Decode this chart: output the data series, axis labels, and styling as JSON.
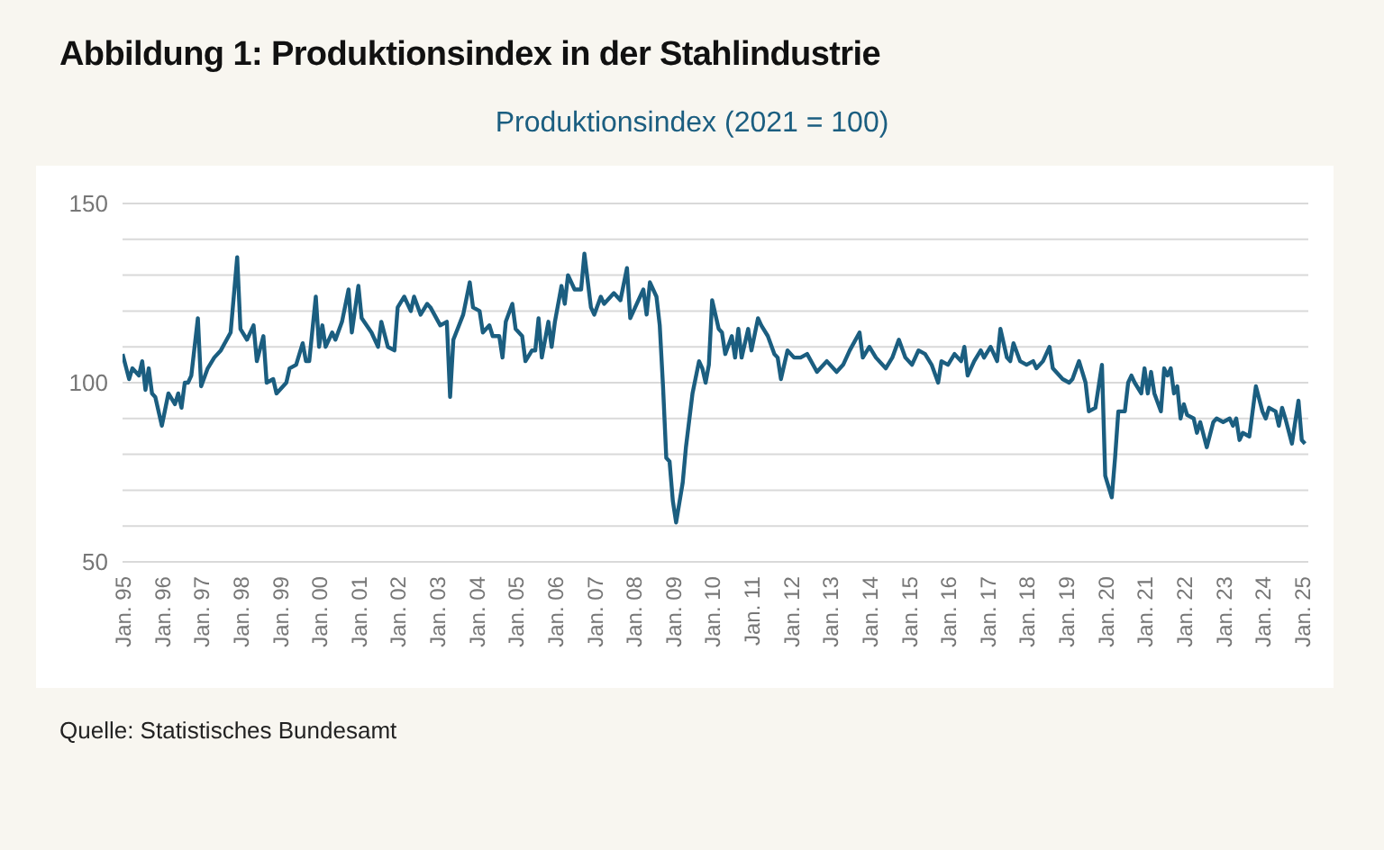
{
  "chart_data": {
    "type": "line",
    "title": "Abbildung 1: Produktionsindex in der Stahlindustrie",
    "subtitle": "Produktionsindex (2021 = 100)",
    "annotations": [
      "Quelle: Statistisches Bundesamt"
    ],
    "x": [
      "1995-01",
      "1995-03",
      "1995-04",
      "1995-06",
      "1995-07",
      "1995-08",
      "1995-09",
      "1995-10",
      "1995-11",
      "1996-01",
      "1996-03",
      "1996-05",
      "1996-06",
      "1996-07",
      "1996-08",
      "1996-09",
      "1996-10",
      "1996-12",
      "1997-01",
      "1997-03",
      "1997-05",
      "1997-07",
      "1997-10",
      "1997-12",
      "1998-01",
      "1998-03",
      "1998-05",
      "1998-06",
      "1998-08",
      "1998-09",
      "1998-11",
      "1998-12",
      "1999-03",
      "1999-04",
      "1999-06",
      "1999-08",
      "1999-09",
      "1999-10",
      "1999-12",
      "2000-01",
      "2000-02",
      "2000-03",
      "2000-05",
      "2000-06",
      "2000-08",
      "2000-10",
      "2000-11",
      "2001-01",
      "2001-02",
      "2001-05",
      "2001-07",
      "2001-08",
      "2001-10",
      "2001-12",
      "2002-01",
      "2002-03",
      "2002-05",
      "2002-06",
      "2002-08",
      "2002-10",
      "2002-11",
      "2003-02",
      "2003-04",
      "2003-05",
      "2003-06",
      "2003-09",
      "2003-11",
      "2003-12",
      "2004-02",
      "2004-03",
      "2004-05",
      "2004-06",
      "2004-08",
      "2004-09",
      "2004-10",
      "2004-12",
      "2005-01",
      "2005-03",
      "2005-04",
      "2005-06",
      "2005-07",
      "2005-08",
      "2005-09",
      "2005-11",
      "2005-12",
      "2006-01",
      "2006-03",
      "2006-04",
      "2006-05",
      "2006-07",
      "2006-09",
      "2006-10",
      "2006-12",
      "2007-01",
      "2007-03",
      "2007-04",
      "2007-07",
      "2007-09",
      "2007-11",
      "2007-12",
      "2008-02",
      "2008-04",
      "2008-05",
      "2008-06",
      "2008-08",
      "2008-09",
      "2008-10",
      "2008-11",
      "2008-12",
      "2009-01",
      "2009-02",
      "2009-04",
      "2009-05",
      "2009-07",
      "2009-09",
      "2009-10",
      "2009-11",
      "2009-12",
      "2010-01",
      "2010-03",
      "2010-04",
      "2010-05",
      "2010-07",
      "2010-08",
      "2010-09",
      "2010-10",
      "2010-12",
      "2011-01",
      "2011-03",
      "2011-04",
      "2011-06",
      "2011-08",
      "2011-09",
      "2011-10",
      "2011-12",
      "2012-02",
      "2012-04",
      "2012-06",
      "2012-09",
      "2012-12",
      "2013-03",
      "2013-05",
      "2013-07",
      "2013-10",
      "2013-11",
      "2014-01",
      "2014-03",
      "2014-06",
      "2014-08",
      "2014-10",
      "2014-12",
      "2015-02",
      "2015-04",
      "2015-06",
      "2015-08",
      "2015-10",
      "2015-11",
      "2016-01",
      "2016-03",
      "2016-05",
      "2016-06",
      "2016-07",
      "2016-09",
      "2016-11",
      "2016-12",
      "2017-02",
      "2017-04",
      "2017-05",
      "2017-07",
      "2017-08",
      "2017-09",
      "2017-11",
      "2018-01",
      "2018-03",
      "2018-04",
      "2018-06",
      "2018-08",
      "2018-09",
      "2018-12",
      "2019-02",
      "2019-03",
      "2019-05",
      "2019-07",
      "2019-08",
      "2019-10",
      "2019-12",
      "2020-01",
      "2020-03",
      "2020-04",
      "2020-05",
      "2020-07",
      "2020-08",
      "2020-09",
      "2020-10",
      "2020-12",
      "2021-01",
      "2021-02",
      "2021-03",
      "2021-04",
      "2021-06",
      "2021-07",
      "2021-08",
      "2021-09",
      "2021-10",
      "2021-11",
      "2021-12",
      "2022-01",
      "2022-02",
      "2022-04",
      "2022-05",
      "2022-06",
      "2022-08",
      "2022-10",
      "2022-11",
      "2023-01",
      "2023-03",
      "2023-04",
      "2023-05",
      "2023-06",
      "2023-07",
      "2023-09",
      "2023-11",
      "2024-01",
      "2024-02",
      "2024-03",
      "2024-05",
      "2024-06",
      "2024-07",
      "2024-08",
      "2024-10",
      "2024-12",
      "2025-01",
      "2025-02"
    ],
    "series": [
      {
        "color": "#1b5e80",
        "values": [
          108,
          101,
          104,
          102,
          106,
          98,
          104,
          97,
          96,
          88,
          97,
          94,
          97,
          93,
          100,
          100,
          102,
          118,
          99,
          104,
          107,
          109,
          114,
          135,
          115,
          112,
          116,
          106,
          113,
          100,
          101,
          97,
          100,
          104,
          105,
          111,
          106,
          106,
          124,
          110,
          116,
          110,
          114,
          112,
          117,
          126,
          114,
          127,
          118,
          114,
          110,
          117,
          110,
          109,
          121,
          124,
          120,
          124,
          119,
          122,
          121,
          116,
          117,
          96,
          112,
          119,
          128,
          121,
          120,
          114,
          116,
          113,
          113,
          107,
          117,
          122,
          115,
          113,
          106,
          109,
          109,
          118,
          107,
          117,
          110,
          117,
          127,
          122,
          130,
          126,
          126,
          136,
          121,
          119,
          124,
          122,
          125,
          123,
          132,
          118,
          122,
          126,
          119,
          128,
          124,
          116,
          99,
          79,
          78,
          67,
          61,
          72,
          82,
          97,
          106,
          104,
          100,
          105,
          123,
          115,
          114,
          108,
          113,
          107,
          115,
          107,
          115,
          109,
          118,
          116,
          113,
          108,
          107,
          101,
          109,
          107,
          107,
          108,
          103,
          106,
          103,
          105,
          109,
          114,
          107,
          110,
          107,
          104,
          107,
          112,
          107,
          105,
          109,
          108,
          105,
          100,
          106,
          105,
          108,
          106,
          110,
          102,
          106,
          109,
          107,
          110,
          106,
          115,
          107,
          106,
          111,
          106,
          105,
          106,
          104,
          106,
          110,
          104,
          101,
          100,
          101,
          106,
          100,
          92,
          93,
          105,
          74,
          68,
          79,
          92,
          92,
          100,
          102,
          100,
          97,
          104,
          97,
          103,
          97,
          92,
          104,
          102,
          104,
          97,
          99,
          90,
          94,
          91,
          90,
          86,
          89,
          82,
          89,
          90,
          89,
          90,
          88,
          90,
          84,
          86,
          85,
          99,
          92,
          90,
          93,
          92,
          88,
          93,
          90,
          83,
          95,
          84,
          83
        ]
      }
    ],
    "xlim": [
      "1995-01",
      "2025-03"
    ],
    "xticks": [
      {
        "value": "1995-01",
        "label": "Jan. 95"
      },
      {
        "value": "1996-01",
        "label": "Jan. 96"
      },
      {
        "value": "1997-01",
        "label": "Jan. 97"
      },
      {
        "value": "1998-01",
        "label": "Jan. 98"
      },
      {
        "value": "1999-01",
        "label": "Jan. 99"
      },
      {
        "value": "2000-01",
        "label": "Jan. 00"
      },
      {
        "value": "2001-01",
        "label": "Jan. 01"
      },
      {
        "value": "2002-01",
        "label": "Jan. 02"
      },
      {
        "value": "2003-01",
        "label": "Jan. 03"
      },
      {
        "value": "2004-01",
        "label": "Jan. 04"
      },
      {
        "value": "2005-01",
        "label": "Jan. 05"
      },
      {
        "value": "2006-01",
        "label": "Jan. 06"
      },
      {
        "value": "2007-01",
        "label": "Jan. 07"
      },
      {
        "value": "2008-01",
        "label": "Jan. 08"
      },
      {
        "value": "2009-01",
        "label": "Jan. 09"
      },
      {
        "value": "2010-01",
        "label": "Jan. 10"
      },
      {
        "value": "2011-01",
        "label": "Jan. 11"
      },
      {
        "value": "2012-01",
        "label": "Jan. 12"
      },
      {
        "value": "2013-01",
        "label": "Jan. 13"
      },
      {
        "value": "2014-01",
        "label": "Jan. 14"
      },
      {
        "value": "2015-01",
        "label": "Jan. 15"
      },
      {
        "value": "2016-01",
        "label": "Jan. 16"
      },
      {
        "value": "2017-01",
        "label": "Jan. 17"
      },
      {
        "value": "2018-01",
        "label": "Jan. 18"
      },
      {
        "value": "2019-01",
        "label": "Jan. 19"
      },
      {
        "value": "2020-01",
        "label": "Jan. 20"
      },
      {
        "value": "2021-01",
        "label": "Jan. 21"
      },
      {
        "value": "2022-01",
        "label": "Jan. 22"
      },
      {
        "value": "2023-01",
        "label": "Jan. 23"
      },
      {
        "value": "2024-01",
        "label": "Jan. 24"
      },
      {
        "value": "2025-01",
        "label": "Jan. 25"
      }
    ],
    "ylim": [
      50,
      150
    ],
    "yticks": [
      50,
      {
        "value": 60,
        "label": null
      },
      {
        "value": 70,
        "label": null
      },
      {
        "value": 80,
        "label": null
      },
      {
        "value": 90,
        "label": null
      },
      100,
      {
        "value": 110,
        "label": null
      },
      {
        "value": 120,
        "label": null
      },
      {
        "value": 130,
        "label": null
      },
      {
        "value": 140,
        "label": null
      },
      150
    ],
    "grid": "y",
    "legend": false,
    "marker": "none",
    "line_style": "solid"
  }
}
